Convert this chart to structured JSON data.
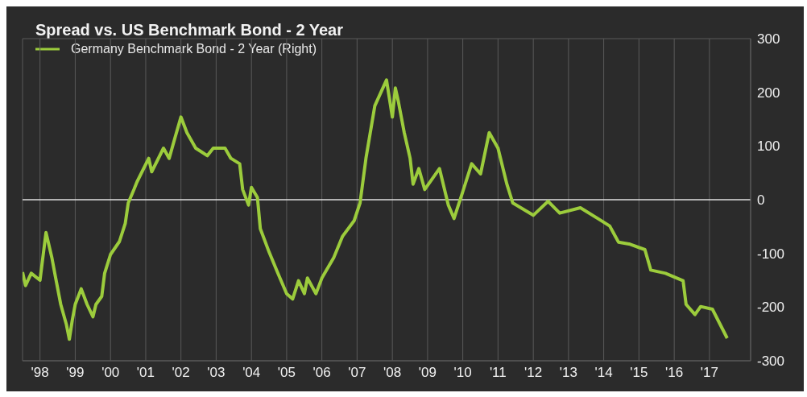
{
  "chart_data": {
    "type": "line",
    "title": "Spread vs. US Benchmark Bond - 2 Year",
    "x": [
      "1998-01",
      "1998-02",
      "1998-04",
      "1998-07",
      "1998-09",
      "1998-11",
      "1998-12",
      "1999-02",
      "1999-04",
      "1999-05",
      "1999-06",
      "1999-07",
      "1999-09",
      "1999-11",
      "2000-01",
      "2000-02",
      "2000-04",
      "2000-05",
      "2000-07",
      "2000-10",
      "2000-12",
      "2001-01",
      "2001-03",
      "2001-04",
      "2001-08",
      "2001-09",
      "2002-01",
      "2002-03",
      "2002-05",
      "2002-07",
      "2002-09",
      "2002-12",
      "2003-04",
      "2003-06",
      "2003-10",
      "2003-12",
      "2004-03",
      "2004-04",
      "2004-06",
      "2004-07",
      "2004-09",
      "2004-10",
      "2005-01",
      "2005-04",
      "2005-07",
      "2005-09",
      "2005-11",
      "2006-01",
      "2006-02",
      "2006-05",
      "2006-07",
      "2006-11",
      "2007-02",
      "2007-06",
      "2007-08",
      "2007-10",
      "2008-01",
      "2008-05",
      "2008-07",
      "2008-08",
      "2008-09",
      "2008-11",
      "2009-01",
      "2009-02",
      "2009-04",
      "2009-06",
      "2009-11",
      "2010-02",
      "2010-04",
      "2010-07",
      "2010-10",
      "2011-01",
      "2011-04",
      "2011-07",
      "2011-10",
      "2011-12",
      "2012-07",
      "2012-12",
      "2013-04",
      "2013-11",
      "2014-05",
      "2014-09",
      "2014-12",
      "2015-04",
      "2015-09",
      "2015-11",
      "2016-04",
      "2016-10",
      "2016-11",
      "2017-02",
      "2017-04",
      "2017-08",
      "2018-01"
    ],
    "series": [
      {
        "name": "Germany Benchmark Bond - 2 Year (Right)",
        "color": "#9ccc3c",
        "axis": "y2",
        "values": [
          -135,
          -160,
          -137,
          -150,
          -61,
          -108,
          -137,
          -195,
          -233,
          -260,
          -224,
          -195,
          -166,
          -195,
          -218,
          -195,
          -180,
          -137,
          -102,
          -78,
          -44,
          -6,
          19,
          33,
          77,
          52,
          96,
          77,
          116,
          154,
          125,
          96,
          82,
          96,
          96,
          77,
          67,
          19,
          -10,
          23,
          4,
          -54,
          -98,
          -137,
          -175,
          -185,
          -151,
          -175,
          -146,
          -175,
          -146,
          -108,
          -68,
          -39,
          -6,
          77,
          175,
          223,
          154,
          208,
          183,
          125,
          77,
          29,
          58,
          19,
          58,
          -10,
          -35,
          15,
          67,
          48,
          125,
          96,
          29,
          -6,
          -29,
          -3,
          -25,
          -15,
          -35,
          -49,
          -79,
          -83,
          -93,
          -131,
          -137,
          -151,
          -195,
          -214,
          -199,
          -204,
          -258
        ]
      }
    ],
    "xlim": [
      "1998-01",
      "2018-09"
    ],
    "xticks": [
      {
        "value": "1998-07",
        "label": "'98"
      },
      {
        "value": "1999-07",
        "label": "'99"
      },
      {
        "value": "2000-07",
        "label": "'00"
      },
      {
        "value": "2001-07",
        "label": "'01"
      },
      {
        "value": "2002-07",
        "label": "'02"
      },
      {
        "value": "2003-07",
        "label": "'03"
      },
      {
        "value": "2004-07",
        "label": "'04"
      },
      {
        "value": "2005-07",
        "label": "'05"
      },
      {
        "value": "2006-07",
        "label": "'06"
      },
      {
        "value": "2007-07",
        "label": "'07"
      },
      {
        "value": "2008-07",
        "label": "'08"
      },
      {
        "value": "2009-07",
        "label": "'09"
      },
      {
        "value": "2010-07",
        "label": "'10"
      },
      {
        "value": "2011-07",
        "label": "'11"
      },
      {
        "value": "2012-07",
        "label": "'12"
      },
      {
        "value": "2013-07",
        "label": "'13"
      },
      {
        "value": "2014-07",
        "label": "'14"
      },
      {
        "value": "2015-07",
        "label": "'15"
      },
      {
        "value": "2016-07",
        "label": "'16"
      },
      {
        "value": "2017-07",
        "label": "'17"
      }
    ],
    "y2lim": [
      -300,
      300
    ],
    "y2ticks": [
      300,
      200,
      100,
      0,
      -100,
      -200,
      -300
    ],
    "ref_lines": [
      {
        "axis": "y2",
        "value": 0,
        "color": "#e0e0e0"
      }
    ],
    "grid": true,
    "legend": "top left",
    "line_style": "solid",
    "marker": "none"
  }
}
